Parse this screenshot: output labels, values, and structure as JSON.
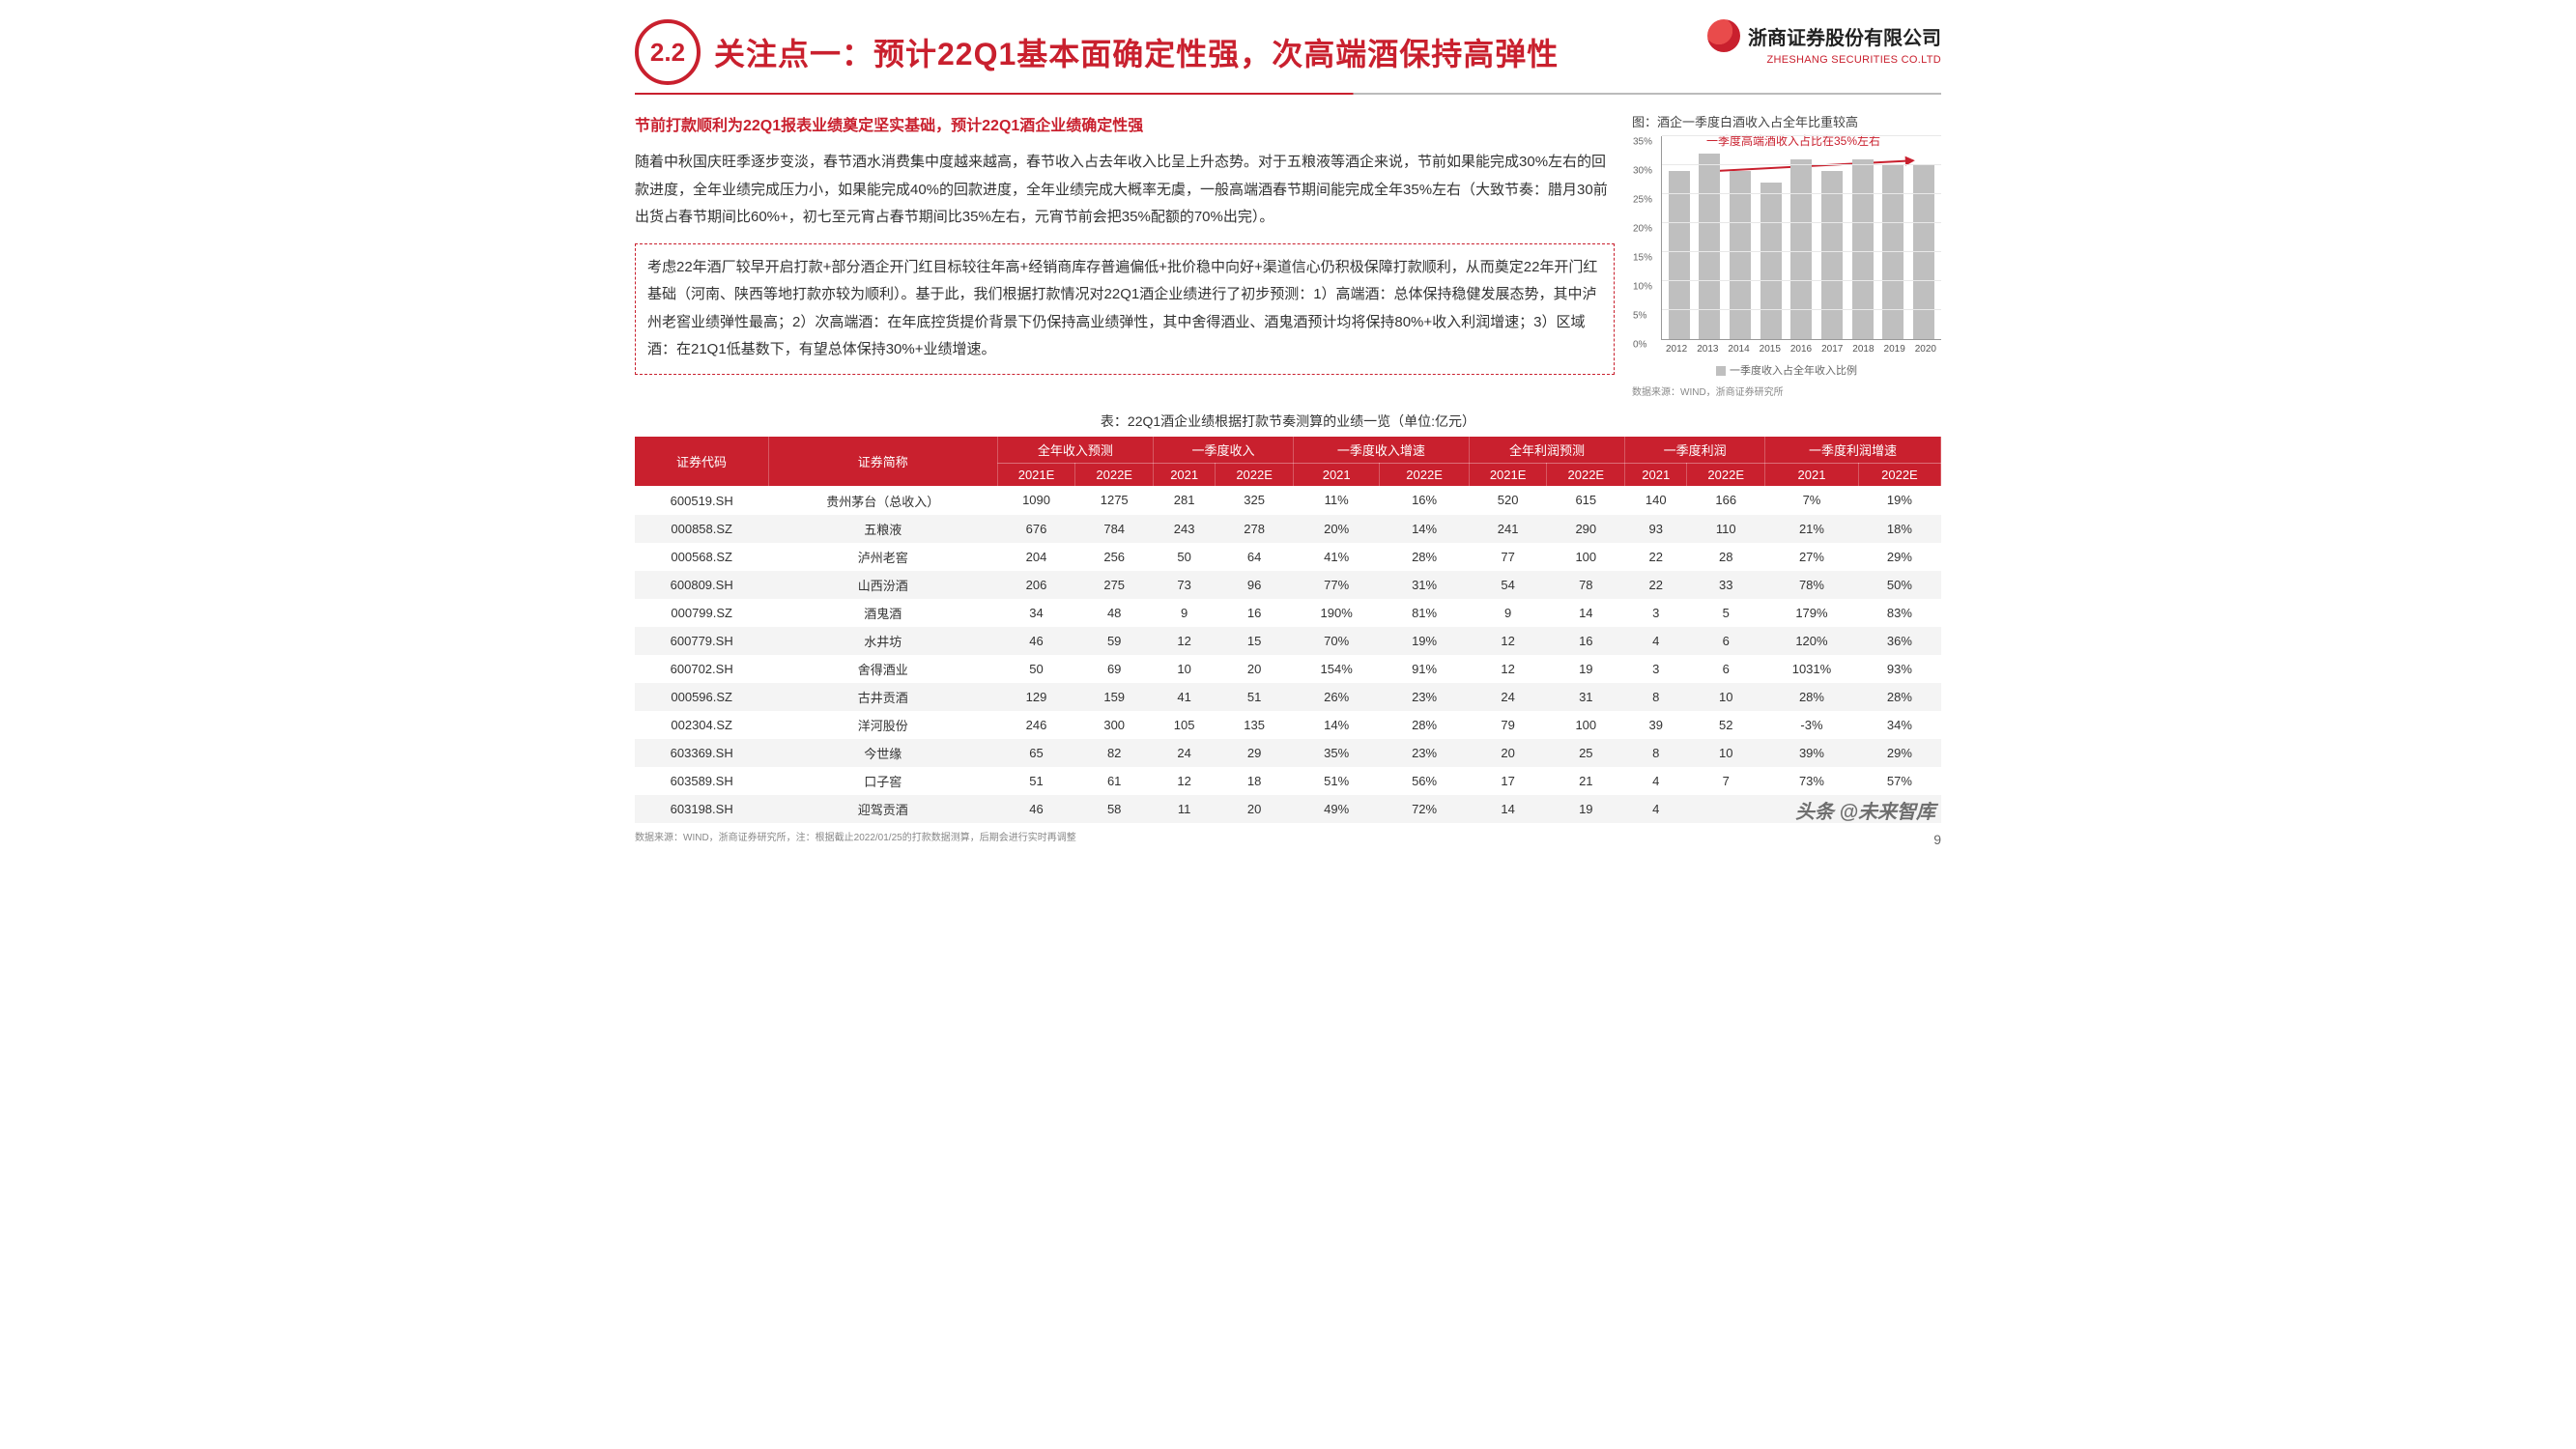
{
  "header": {
    "section_num": "2.2",
    "title": "关注点一：预计22Q1基本面确定性强，次高端酒保持高弹性",
    "logo_cn": "浙商证券股份有限公司",
    "logo_en": "ZHESHANG SECURITIES CO.LTD"
  },
  "subhead": "节前打款顺利为22Q1报表业绩奠定坚实基础，预计22Q1酒企业绩确定性强",
  "para1": "随着中秋国庆旺季逐步变淡，春节酒水消费集中度越来越高，春节收入占去年收入比呈上升态势。对于五粮液等酒企来说，节前如果能完成30%左右的回款进度，全年业绩完成压力小，如果能完成40%的回款进度，全年业绩完成大概率无虞，一般高端酒春节期间能完成全年35%左右（大致节奏：腊月30前出货占春节期间比60%+，初七至元宵占春节期间比35%左右，元宵节前会把35%配额的70%出完）。",
  "box": "考虑22年酒厂较早开启打款+部分酒企开门红目标较往年高+经销商库存普遍偏低+批价稳中向好+渠道信心仍积极保障打款顺利，从而奠定22年开门红基础（河南、陕西等地打款亦较为顺利）。基于此，我们根据打款情况对22Q1酒企业绩进行了初步预测：1）高端酒：总体保持稳健发展态势，其中泸州老窖业绩弹性最高；2）次高端酒：在年底控货提价背景下仍保持高业绩弹性，其中舍得酒业、酒鬼酒预计均将保持80%+收入利润增速；3）区域酒：在21Q1低基数下，有望总体保持30%+业绩增速。",
  "chart": {
    "title": "图：酒企一季度白酒收入占全年比重较高",
    "annotation": "一季度高端酒收入占比在35%左右",
    "ymax": 35,
    "ystep": 5,
    "yticks": [
      "0%",
      "5%",
      "10%",
      "15%",
      "20%",
      "25%",
      "30%",
      "35%"
    ],
    "categories": [
      "2012",
      "2013",
      "2014",
      "2015",
      "2016",
      "2017",
      "2018",
      "2019",
      "2020"
    ],
    "values": [
      29,
      32,
      29,
      27,
      31,
      29,
      31,
      30,
      30
    ],
    "bar_color": "#bfbfbf",
    "legend": "一季度收入占全年收入比例",
    "source": "数据来源：WIND，浙商证券研究所"
  },
  "table": {
    "title": "表：22Q1酒企业绩根据打款节奏测算的业绩一览（单位:亿元）",
    "header1": [
      "证券代码",
      "证券简称",
      "全年收入预测",
      "一季度收入",
      "一季度收入增速",
      "全年利润预测",
      "一季度利润",
      "一季度利润增速"
    ],
    "header2": [
      "2021E",
      "2022E",
      "2021",
      "2022E",
      "2021",
      "2022E",
      "2021E",
      "2022E",
      "2021",
      "2022E",
      "2021",
      "2022E"
    ],
    "rows": [
      [
        "600519.SH",
        "贵州茅台（总收入）",
        "1090",
        "1275",
        "281",
        "325",
        "11%",
        "16%",
        "520",
        "615",
        "140",
        "166",
        "7%",
        "19%"
      ],
      [
        "000858.SZ",
        "五粮液",
        "676",
        "784",
        "243",
        "278",
        "20%",
        "14%",
        "241",
        "290",
        "93",
        "110",
        "21%",
        "18%"
      ],
      [
        "000568.SZ",
        "泸州老窖",
        "204",
        "256",
        "50",
        "64",
        "41%",
        "28%",
        "77",
        "100",
        "22",
        "28",
        "27%",
        "29%"
      ],
      [
        "600809.SH",
        "山西汾酒",
        "206",
        "275",
        "73",
        "96",
        "77%",
        "31%",
        "54",
        "78",
        "22",
        "33",
        "78%",
        "50%"
      ],
      [
        "000799.SZ",
        "酒鬼酒",
        "34",
        "48",
        "9",
        "16",
        "190%",
        "81%",
        "9",
        "14",
        "3",
        "5",
        "179%",
        "83%"
      ],
      [
        "600779.SH",
        "水井坊",
        "46",
        "59",
        "12",
        "15",
        "70%",
        "19%",
        "12",
        "16",
        "4",
        "6",
        "120%",
        "36%"
      ],
      [
        "600702.SH",
        "舍得酒业",
        "50",
        "69",
        "10",
        "20",
        "154%",
        "91%",
        "12",
        "19",
        "3",
        "6",
        "1031%",
        "93%"
      ],
      [
        "000596.SZ",
        "古井贡酒",
        "129",
        "159",
        "41",
        "51",
        "26%",
        "23%",
        "24",
        "31",
        "8",
        "10",
        "28%",
        "28%"
      ],
      [
        "002304.SZ",
        "洋河股份",
        "246",
        "300",
        "105",
        "135",
        "14%",
        "28%",
        "79",
        "100",
        "39",
        "52",
        "-3%",
        "34%"
      ],
      [
        "603369.SH",
        "今世缘",
        "65",
        "82",
        "24",
        "29",
        "35%",
        "23%",
        "20",
        "25",
        "8",
        "10",
        "39%",
        "29%"
      ],
      [
        "603589.SH",
        "口子窖",
        "51",
        "61",
        "12",
        "18",
        "51%",
        "56%",
        "17",
        "21",
        "4",
        "7",
        "73%",
        "57%"
      ],
      [
        "603198.SH",
        "迎驾贡酒",
        "46",
        "58",
        "11",
        "20",
        "49%",
        "72%",
        "14",
        "19",
        "4",
        "",
        "",
        ""
      ]
    ],
    "footnote": "数据来源：WIND，浙商证券研究所，注：根据截止2022/01/25的打款数据测算，后期会进行实时再调整"
  },
  "page_num": "9",
  "watermark": "头条 @未来智库"
}
